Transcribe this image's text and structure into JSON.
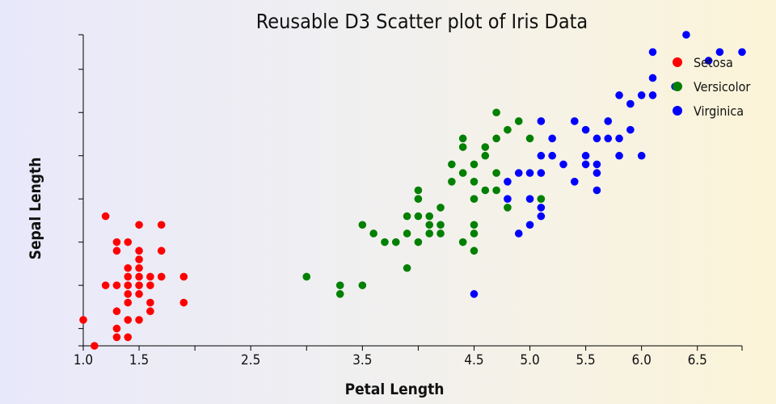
{
  "chart_data": {
    "type": "scatter",
    "title": "Reusable D3 Scatter plot of Iris Data",
    "xlabel": "Petal Length",
    "ylabel": "Sepal Length",
    "xlim": [
      1.0,
      6.9
    ],
    "ylim": [
      4.3,
      7.9
    ],
    "x_tick_values": [
      1.0,
      1.5,
      2.0,
      2.5,
      3.0,
      3.5,
      4.0,
      4.5,
      5.0,
      5.5,
      6.0,
      6.5
    ],
    "x_tick_labels": [
      "1.0",
      "1.5",
      "",
      "2.5",
      "",
      "3.5",
      "",
      "4.5",
      "5.0",
      "5.5",
      "6.0",
      "6.5"
    ],
    "y_tick_values": [
      4.5,
      5.0,
      5.5,
      6.0,
      6.5,
      7.0,
      7.5
    ],
    "y_tick_labels": [
      "",
      "",
      "",
      "",
      "",
      "",
      ""
    ],
    "legend_position": "top-right",
    "grid": false,
    "series": [
      {
        "name": "Setosa",
        "color": "#ff0000",
        "points": [
          [
            1.0,
            4.6
          ],
          [
            1.1,
            4.3
          ],
          [
            1.2,
            5.8
          ],
          [
            1.2,
            5.0
          ],
          [
            1.3,
            5.5
          ],
          [
            1.3,
            5.4
          ],
          [
            1.3,
            5.0
          ],
          [
            1.3,
            4.7
          ],
          [
            1.3,
            4.5
          ],
          [
            1.3,
            4.4
          ],
          [
            1.4,
            5.5
          ],
          [
            1.4,
            5.2
          ],
          [
            1.4,
            5.1
          ],
          [
            1.4,
            5.0
          ],
          [
            1.4,
            4.9
          ],
          [
            1.4,
            4.8
          ],
          [
            1.4,
            4.6
          ],
          [
            1.4,
            4.4
          ],
          [
            1.5,
            5.7
          ],
          [
            1.5,
            5.4
          ],
          [
            1.5,
            5.3
          ],
          [
            1.5,
            5.2
          ],
          [
            1.5,
            5.1
          ],
          [
            1.5,
            5.0
          ],
          [
            1.5,
            4.9
          ],
          [
            1.5,
            4.6
          ],
          [
            1.6,
            5.1
          ],
          [
            1.6,
            5.0
          ],
          [
            1.6,
            4.8
          ],
          [
            1.6,
            4.7
          ],
          [
            1.7,
            5.7
          ],
          [
            1.7,
            5.4
          ],
          [
            1.7,
            5.1
          ],
          [
            1.9,
            5.1
          ],
          [
            1.9,
            4.8
          ]
        ]
      },
      {
        "name": "Versicolor",
        "color": "#008000",
        "points": [
          [
            3.0,
            5.1
          ],
          [
            3.3,
            5.0
          ],
          [
            3.3,
            4.9
          ],
          [
            3.5,
            5.7
          ],
          [
            3.5,
            5.0
          ],
          [
            3.6,
            5.6
          ],
          [
            3.7,
            5.5
          ],
          [
            3.8,
            5.5
          ],
          [
            3.9,
            5.8
          ],
          [
            3.9,
            5.6
          ],
          [
            3.9,
            5.2
          ],
          [
            4.0,
            6.1
          ],
          [
            4.0,
            6.0
          ],
          [
            4.0,
            5.8
          ],
          [
            4.0,
            5.5
          ],
          [
            4.1,
            5.8
          ],
          [
            4.1,
            5.7
          ],
          [
            4.1,
            5.6
          ],
          [
            4.2,
            5.9
          ],
          [
            4.2,
            5.7
          ],
          [
            4.2,
            5.6
          ],
          [
            4.3,
            6.4
          ],
          [
            4.3,
            6.2
          ],
          [
            4.4,
            6.7
          ],
          [
            4.4,
            6.6
          ],
          [
            4.4,
            6.3
          ],
          [
            4.4,
            5.5
          ],
          [
            4.5,
            6.4
          ],
          [
            4.5,
            6.2
          ],
          [
            4.5,
            6.0
          ],
          [
            4.5,
            5.7
          ],
          [
            4.5,
            5.6
          ],
          [
            4.5,
            5.4
          ],
          [
            4.6,
            6.6
          ],
          [
            4.6,
            6.5
          ],
          [
            4.6,
            6.1
          ],
          [
            4.7,
            7.0
          ],
          [
            4.7,
            6.7
          ],
          [
            4.7,
            6.3
          ],
          [
            4.7,
            6.1
          ],
          [
            4.8,
            6.8
          ],
          [
            4.8,
            5.9
          ],
          [
            4.9,
            6.9
          ],
          [
            5.0,
            6.7
          ],
          [
            5.1,
            6.0
          ]
        ]
      },
      {
        "name": "Virginica",
        "color": "#0000ff",
        "points": [
          [
            4.5,
            4.9
          ],
          [
            4.8,
            6.2
          ],
          [
            4.8,
            6.0
          ],
          [
            4.9,
            6.3
          ],
          [
            4.9,
            5.6
          ],
          [
            5.0,
            6.3
          ],
          [
            5.0,
            6.0
          ],
          [
            5.0,
            5.7
          ],
          [
            5.1,
            6.9
          ],
          [
            5.1,
            6.5
          ],
          [
            5.1,
            6.3
          ],
          [
            5.1,
            5.9
          ],
          [
            5.1,
            5.8
          ],
          [
            5.2,
            6.7
          ],
          [
            5.2,
            6.5
          ],
          [
            5.3,
            6.4
          ],
          [
            5.4,
            6.9
          ],
          [
            5.4,
            6.2
          ],
          [
            5.5,
            6.8
          ],
          [
            5.5,
            6.5
          ],
          [
            5.5,
            6.4
          ],
          [
            5.6,
            6.7
          ],
          [
            5.6,
            6.4
          ],
          [
            5.6,
            6.3
          ],
          [
            5.6,
            6.1
          ],
          [
            5.7,
            6.9
          ],
          [
            5.7,
            6.7
          ],
          [
            5.8,
            7.2
          ],
          [
            5.8,
            6.7
          ],
          [
            5.8,
            6.5
          ],
          [
            5.9,
            7.1
          ],
          [
            5.9,
            6.8
          ],
          [
            6.0,
            7.2
          ],
          [
            6.0,
            6.5
          ],
          [
            6.1,
            7.7
          ],
          [
            6.1,
            7.4
          ],
          [
            6.1,
            7.2
          ],
          [
            6.3,
            7.3
          ],
          [
            6.4,
            7.9
          ],
          [
            6.6,
            7.6
          ],
          [
            6.7,
            7.7
          ],
          [
            6.9,
            7.7
          ]
        ]
      }
    ]
  }
}
